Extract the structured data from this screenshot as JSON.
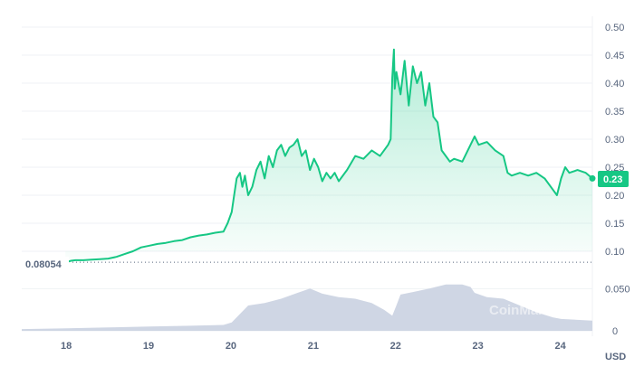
{
  "chart_data": {
    "type": "area",
    "unit_label": "USD",
    "start_price_label": "0.08054",
    "current_price_label": "0.23",
    "watermark": "CoinMarketCap",
    "colors": {
      "line": "#16c784",
      "start_segment": "#ea3943",
      "volume": "#cfd6e4",
      "badge": "#16c784"
    },
    "y_axis": {
      "ticks": [
        "0.50",
        "0.45",
        "0.40",
        "0.35",
        "0.30",
        "0.25",
        "0.20",
        "0.15",
        "0.10"
      ],
      "range": [
        0.08,
        0.5
      ]
    },
    "volume_axis": {
      "ticks": [
        "0.050",
        "0"
      ]
    },
    "x_axis": {
      "ticks": [
        "18",
        "19",
        "20",
        "21",
        "22",
        "23",
        "24"
      ]
    },
    "series": [
      {
        "values_x": [
          17.98,
          18.0,
          18.05,
          18.1,
          18.2,
          18.3,
          18.4,
          18.5,
          18.6,
          18.7,
          18.8,
          18.9,
          19.0,
          19.1,
          19.2,
          19.3,
          19.4,
          19.5,
          19.6,
          19.7,
          19.8,
          19.9,
          19.95,
          20.0,
          20.03,
          20.06,
          20.1,
          20.13,
          20.16,
          20.2,
          20.25,
          20.3,
          20.35,
          20.4,
          20.45,
          20.5,
          20.55,
          20.6,
          20.65,
          20.7,
          20.75,
          20.8,
          20.85,
          20.9,
          20.95,
          21.0,
          21.05,
          21.1,
          21.15,
          21.2,
          21.25,
          21.3,
          21.4,
          21.5,
          21.6,
          21.7,
          21.8,
          21.85,
          21.9,
          21.93,
          21.95,
          21.97,
          21.98,
          22.0,
          22.05,
          22.1,
          22.15,
          22.2,
          22.25,
          22.3,
          22.35,
          22.4,
          22.45,
          22.5,
          22.55,
          22.6,
          22.65,
          22.7,
          22.8,
          22.9,
          22.95,
          23.0,
          23.1,
          23.2,
          23.3,
          23.35,
          23.4,
          23.5,
          23.6,
          23.7,
          23.8,
          23.9,
          23.95,
          24.0,
          24.05,
          24.1,
          24.2,
          24.3,
          24.38
        ],
        "values_y": [
          0.078,
          0.081,
          0.083,
          0.084,
          0.084,
          0.085,
          0.086,
          0.087,
          0.09,
          0.095,
          0.1,
          0.107,
          0.11,
          0.113,
          0.115,
          0.118,
          0.12,
          0.125,
          0.128,
          0.13,
          0.133,
          0.135,
          0.15,
          0.17,
          0.2,
          0.23,
          0.24,
          0.215,
          0.235,
          0.2,
          0.215,
          0.245,
          0.26,
          0.23,
          0.27,
          0.25,
          0.28,
          0.29,
          0.27,
          0.285,
          0.29,
          0.3,
          0.27,
          0.28,
          0.245,
          0.265,
          0.25,
          0.225,
          0.24,
          0.23,
          0.24,
          0.225,
          0.245,
          0.27,
          0.265,
          0.28,
          0.27,
          0.28,
          0.29,
          0.3,
          0.41,
          0.46,
          0.39,
          0.42,
          0.38,
          0.44,
          0.36,
          0.43,
          0.4,
          0.42,
          0.36,
          0.4,
          0.34,
          0.33,
          0.28,
          0.27,
          0.26,
          0.265,
          0.26,
          0.29,
          0.305,
          0.29,
          0.295,
          0.28,
          0.27,
          0.24,
          0.235,
          0.24,
          0.235,
          0.24,
          0.23,
          0.21,
          0.2,
          0.23,
          0.25,
          0.24,
          0.245,
          0.24,
          0.23
        ]
      }
    ],
    "volume": {
      "x": [
        17.45,
        18.0,
        18.5,
        19.0,
        19.5,
        19.9,
        20.0,
        20.2,
        20.4,
        20.6,
        20.8,
        20.95,
        21.1,
        21.3,
        21.5,
        21.7,
        21.85,
        21.95,
        22.0,
        22.05,
        22.2,
        22.4,
        22.6,
        22.8,
        22.9,
        22.95,
        23.1,
        23.3,
        23.5,
        23.7,
        23.9,
        24.0,
        24.2,
        24.38
      ],
      "v": [
        0.002,
        0.003,
        0.004,
        0.005,
        0.006,
        0.007,
        0.01,
        0.03,
        0.033,
        0.038,
        0.045,
        0.05,
        0.044,
        0.04,
        0.038,
        0.033,
        0.025,
        0.018,
        0.03,
        0.043,
        0.046,
        0.05,
        0.055,
        0.055,
        0.052,
        0.045,
        0.04,
        0.038,
        0.03,
        0.022,
        0.016,
        0.014,
        0.013,
        0.012
      ],
      "max": 0.06
    }
  }
}
